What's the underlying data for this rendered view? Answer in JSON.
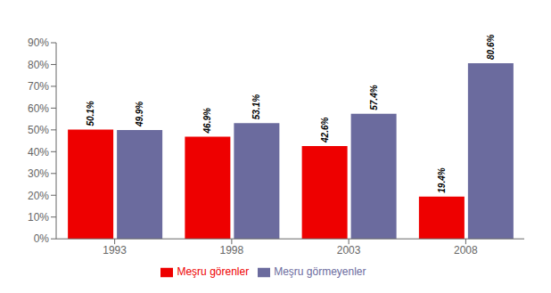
{
  "chart_data": {
    "type": "bar",
    "categories": [
      "1993",
      "1998",
      "2003",
      "2008"
    ],
    "series": [
      {
        "name": "Meşru görenler",
        "color": "#EE0000",
        "values": [
          50.1,
          46.9,
          42.6,
          19.4
        ],
        "value_labels": [
          "50.1%",
          "46.9%",
          "42.6%",
          "19.4%"
        ]
      },
      {
        "name": "Meşru görmeyenler",
        "color": "#6B6B9E",
        "values": [
          49.9,
          53.1,
          57.4,
          80.6
        ],
        "value_labels": [
          "49.9%",
          "53.1%",
          "57.4%",
          "80.6%"
        ]
      }
    ],
    "ylim": [
      0,
      90
    ],
    "yticks": [
      {
        "value": 0,
        "label": "0%"
      },
      {
        "value": 10,
        "label": "10%"
      },
      {
        "value": 20,
        "label": "20%"
      },
      {
        "value": 30,
        "label": "30%"
      },
      {
        "value": 40,
        "label": "40%"
      },
      {
        "value": 50,
        "label": "50%"
      },
      {
        "value": 60,
        "label": "60%"
      },
      {
        "value": 70,
        "label": "70%"
      },
      {
        "value": 80,
        "label": "80%"
      },
      {
        "value": 90,
        "label": "90%"
      }
    ],
    "grid": false,
    "legend": "bottom",
    "data_labels": true
  }
}
